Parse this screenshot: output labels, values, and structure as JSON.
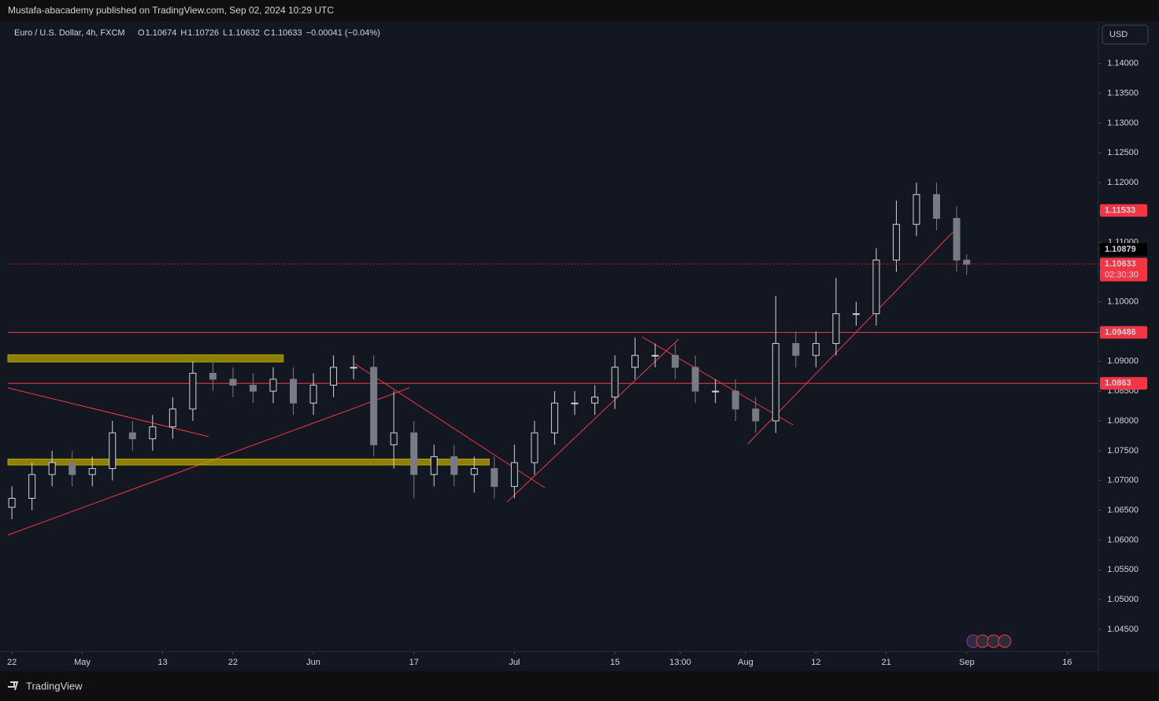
{
  "header": {
    "published": "Mustafa-abacademy published on TradingView.com, Sep 02, 2024 10:29 UTC",
    "symbol": "Euro / U.S. Dollar, 4h, FXCM",
    "ohlc": [
      {
        "key": "O",
        "text": "1.10674"
      },
      {
        "key": "H",
        "text": "1.10726"
      },
      {
        "key": "L",
        "text": "1.10632"
      },
      {
        "key": "C",
        "text": "1.10633"
      }
    ],
    "change": "−0.00041 (−0.04%)",
    "currency": "USD"
  },
  "footer": {
    "brand": "TradingView"
  },
  "chart_data": {
    "type": "candlestick",
    "x": [
      0,
      2,
      4,
      6,
      8,
      10,
      12,
      14,
      16,
      18,
      20,
      22,
      24,
      26,
      28,
      30,
      32,
      34,
      36,
      38,
      40,
      42,
      44,
      46,
      48,
      50,
      52,
      54,
      56,
      58,
      60,
      62,
      64,
      66,
      68,
      70,
      72,
      74,
      76,
      78,
      80,
      82,
      84,
      86,
      88,
      90,
      92,
      94,
      95
    ],
    "open": [
      1.0655,
      1.067,
      1.071,
      1.073,
      1.071,
      1.072,
      1.078,
      1.077,
      1.079,
      1.082,
      1.088,
      1.087,
      1.086,
      1.085,
      1.087,
      1.083,
      1.086,
      1.089,
      1.089,
      1.076,
      1.078,
      1.071,
      1.074,
      1.071,
      1.072,
      1.069,
      1.073,
      1.078,
      1.083,
      1.083,
      1.084,
      1.089,
      1.091,
      1.091,
      1.089,
      1.085,
      1.085,
      1.082,
      1.08,
      1.093,
      1.091,
      1.093,
      1.098,
      1.098,
      1.107,
      1.113,
      1.118,
      1.114,
      1.107
    ],
    "high": [
      1.069,
      1.073,
      1.075,
      1.075,
      1.074,
      1.08,
      1.08,
      1.081,
      1.084,
      1.09,
      1.09,
      1.089,
      1.088,
      1.089,
      1.089,
      1.088,
      1.091,
      1.091,
      1.091,
      1.085,
      1.08,
      1.076,
      1.076,
      1.074,
      1.074,
      1.076,
      1.08,
      1.085,
      1.085,
      1.086,
      1.091,
      1.094,
      1.093,
      1.093,
      1.091,
      1.087,
      1.087,
      1.084,
      1.101,
      1.095,
      1.095,
      1.104,
      1.1,
      1.109,
      1.117,
      1.12,
      1.12,
      1.116,
      1.108
    ],
    "low": [
      1.0635,
      1.065,
      1.069,
      1.069,
      1.069,
      1.07,
      1.075,
      1.075,
      1.077,
      1.08,
      1.085,
      1.084,
      1.083,
      1.083,
      1.081,
      1.081,
      1.084,
      1.087,
      1.074,
      1.072,
      1.067,
      1.069,
      1.069,
      1.068,
      1.067,
      1.067,
      1.071,
      1.076,
      1.081,
      1.081,
      1.082,
      1.087,
      1.089,
      1.087,
      1.083,
      1.083,
      1.08,
      1.078,
      1.078,
      1.089,
      1.089,
      1.091,
      1.096,
      1.096,
      1.105,
      1.111,
      1.112,
      1.105,
      1.1045
    ],
    "close": [
      1.067,
      1.071,
      1.073,
      1.071,
      1.072,
      1.078,
      1.077,
      1.079,
      1.082,
      1.088,
      1.087,
      1.086,
      1.085,
      1.087,
      1.083,
      1.086,
      1.089,
      1.089,
      1.076,
      1.078,
      1.071,
      1.074,
      1.071,
      1.072,
      1.069,
      1.073,
      1.078,
      1.083,
      1.083,
      1.084,
      1.089,
      1.091,
      1.091,
      1.089,
      1.085,
      1.085,
      1.082,
      1.08,
      1.093,
      1.091,
      1.093,
      1.098,
      1.098,
      1.107,
      1.113,
      1.118,
      1.114,
      1.107,
      1.1063
    ],
    "up_color": "#d1d4dc",
    "down_color": "#787b86",
    "xlim": [
      -0.4,
      108.1
    ],
    "ylim": [
      1.0413,
      1.1471
    ],
    "xticks": [
      {
        "value": 0,
        "label": "22"
      },
      {
        "value": 7,
        "label": "May"
      },
      {
        "value": 15,
        "label": "13"
      },
      {
        "value": 22,
        "label": "22"
      },
      {
        "value": 30,
        "label": "Jun"
      },
      {
        "value": 40,
        "label": "17"
      },
      {
        "value": 50,
        "label": "Jul"
      },
      {
        "value": 60,
        "label": "15"
      },
      {
        "value": 66.5,
        "label": "13:00"
      },
      {
        "value": 73,
        "label": "Aug"
      },
      {
        "value": 80,
        "label": "12"
      },
      {
        "value": 87,
        "label": "21"
      },
      {
        "value": 95,
        "label": "Sep"
      },
      {
        "value": 105,
        "label": "16"
      }
    ],
    "yticks": [
      {
        "value": 1.045,
        "label": "1.04500"
      },
      {
        "value": 1.05,
        "label": "1.05000"
      },
      {
        "value": 1.055,
        "label": "1.05500"
      },
      {
        "value": 1.06,
        "label": "1.06000"
      },
      {
        "value": 1.065,
        "label": "1.06500"
      },
      {
        "value": 1.07,
        "label": "1.07000"
      },
      {
        "value": 1.075,
        "label": "1.07500"
      },
      {
        "value": 1.08,
        "label": "1.08000"
      },
      {
        "value": 1.085,
        "label": "1.08500"
      },
      {
        "value": 1.09,
        "label": "1.09000"
      },
      {
        "value": 1.095,
        "label": "1.09500"
      },
      {
        "value": 1.1,
        "label": "1.10000"
      },
      {
        "value": 1.105,
        "label": "1.10500"
      },
      {
        "value": 1.11,
        "label": "1.11000"
      },
      {
        "value": 1.115,
        "label": "1.11500"
      },
      {
        "value": 1.12,
        "label": "1.12000"
      },
      {
        "value": 1.125,
        "label": "1.12500"
      },
      {
        "value": 1.13,
        "label": "1.13000"
      },
      {
        "value": 1.135,
        "label": "1.13500"
      },
      {
        "value": 1.14,
        "label": "1.14000"
      }
    ],
    "levels": [
      1.09486,
      1.0863
    ],
    "level_color": "#f23645",
    "zones": [
      {
        "low": 1.0899,
        "high": 1.0911,
        "x_end": 27
      },
      {
        "low": 1.0726,
        "high": 1.0736,
        "x_end": 47.5
      }
    ],
    "zone_color": "#b8a300",
    "marker": 1.11533,
    "prev_close": 1.10879,
    "last": {
      "price": 1.10633,
      "countdown": "02:30:30"
    }
  }
}
